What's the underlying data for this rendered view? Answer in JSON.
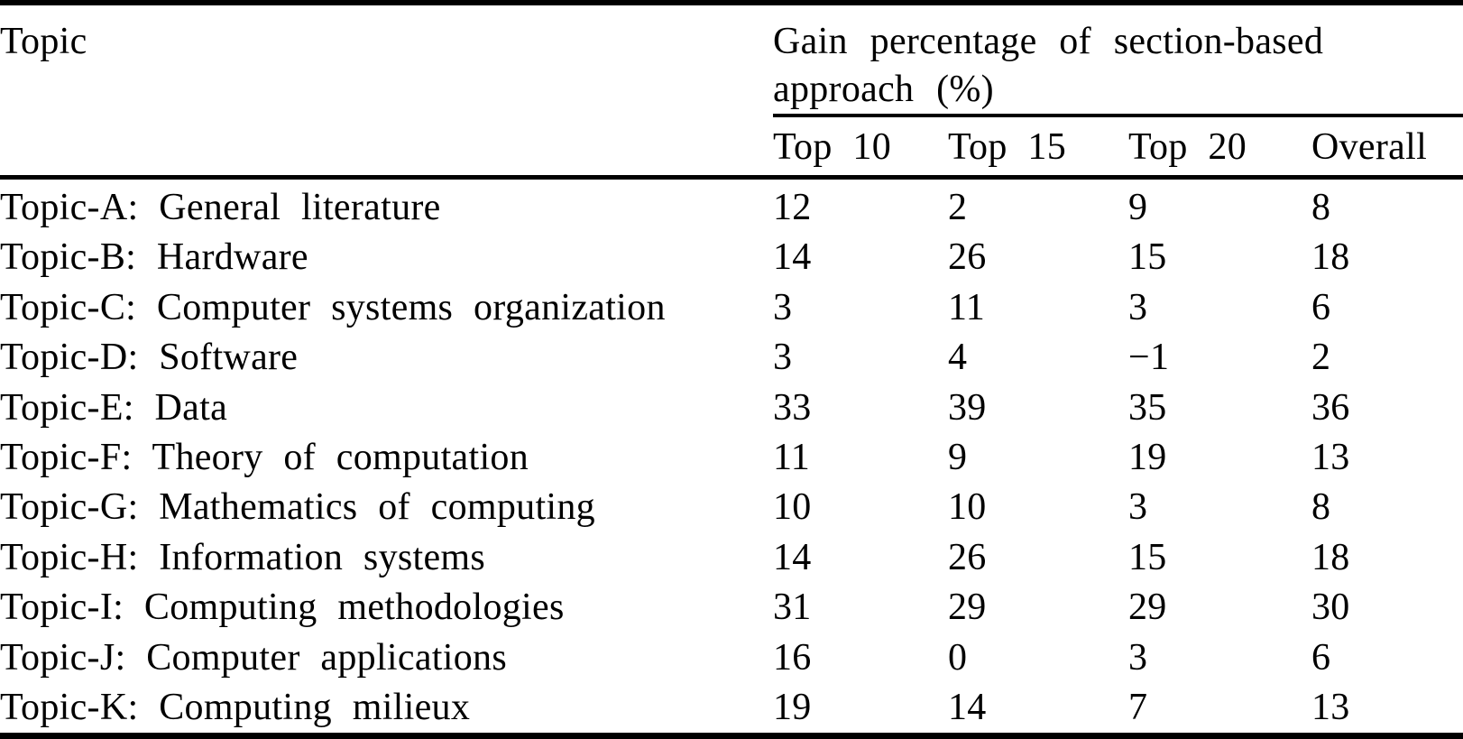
{
  "colors": {
    "text": "#000000",
    "background": "#ffffff",
    "rule": "#000000"
  },
  "table": {
    "topic_header": "Topic",
    "group_header": "Gain percentage of section-based\napproach (%)",
    "columns": [
      "Top 10",
      "Top 15",
      "Top 20",
      "Overall"
    ],
    "rows": [
      {
        "topic": "Topic-A: General literature",
        "values": [
          "12",
          "2",
          "9",
          "8"
        ]
      },
      {
        "topic": "Topic-B: Hardware",
        "values": [
          "14",
          "26",
          "15",
          "18"
        ]
      },
      {
        "topic": "Topic-C: Computer systems organization",
        "values": [
          "3",
          "11",
          "3",
          "6"
        ]
      },
      {
        "topic": "Topic-D: Software",
        "values": [
          "3",
          "4",
          "−1",
          "2"
        ]
      },
      {
        "topic": "Topic-E: Data",
        "values": [
          "33",
          "39",
          "35",
          "36"
        ]
      },
      {
        "topic": "Topic-F: Theory of computation",
        "values": [
          "11",
          "9",
          "19",
          "13"
        ]
      },
      {
        "topic": "Topic-G: Mathematics of computing",
        "values": [
          "10",
          "10",
          "3",
          "8"
        ]
      },
      {
        "topic": "Topic-H: Information systems",
        "values": [
          "14",
          "26",
          "15",
          "18"
        ]
      },
      {
        "topic": "Topic-I: Computing methodologies",
        "values": [
          "31",
          "29",
          "29",
          "30"
        ]
      },
      {
        "topic": "Topic-J: Computer applications",
        "values": [
          "16",
          "0",
          "3",
          "6"
        ]
      },
      {
        "topic": "Topic-K: Computing milieux",
        "values": [
          "19",
          "14",
          "7",
          "13"
        ]
      }
    ]
  }
}
